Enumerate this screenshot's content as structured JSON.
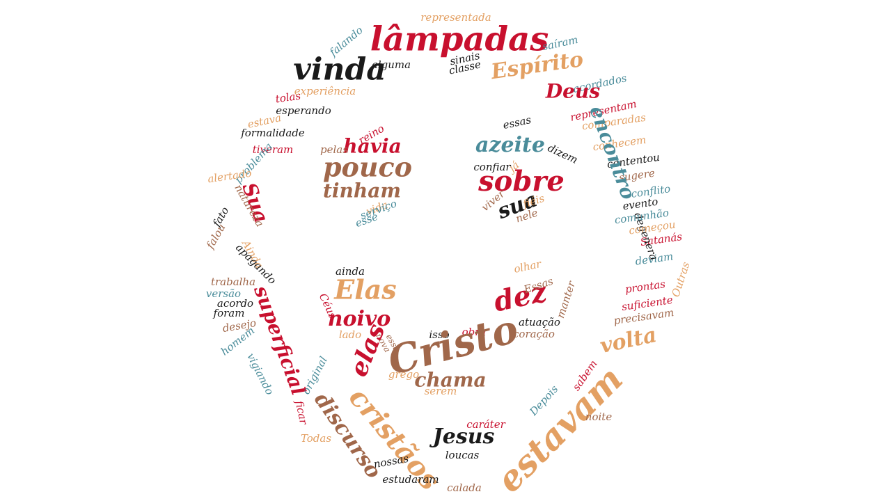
{
  "colors": {
    "red": "#c8102e",
    "black": "#1a1a1a",
    "brown": "#a0674a",
    "orange": "#e3a063",
    "teal": "#4a8c9a"
  },
  "words": [
    {
      "text": "lâmpadas",
      "color": "red",
      "weight": "bold"
    },
    {
      "text": "representada",
      "color": "orange"
    },
    {
      "text": "falando",
      "color": "teal"
    },
    {
      "text": "saíram",
      "color": "teal"
    },
    {
      "text": "vinda",
      "color": "black",
      "weight": "bold"
    },
    {
      "text": "alguma",
      "color": "black"
    },
    {
      "text": "sinais",
      "color": "black"
    },
    {
      "text": "classe",
      "color": "black"
    },
    {
      "text": "Espírito",
      "color": "orange",
      "weight": "bold"
    },
    {
      "text": "acordados",
      "color": "teal"
    },
    {
      "text": "Deus",
      "color": "red",
      "weight": "bold"
    },
    {
      "text": "representam",
      "color": "red"
    },
    {
      "text": "comparadas",
      "color": "orange"
    },
    {
      "text": "tolas",
      "color": "red"
    },
    {
      "text": "experiência",
      "color": "orange"
    },
    {
      "text": "esperando",
      "color": "black"
    },
    {
      "text": "estava",
      "color": "orange"
    },
    {
      "text": "formalidade",
      "color": "black"
    },
    {
      "text": "tiveram",
      "color": "red"
    },
    {
      "text": "problema",
      "color": "teal"
    },
    {
      "text": "alertado",
      "color": "orange"
    },
    {
      "text": "Sua",
      "color": "red",
      "weight": "bold"
    },
    {
      "text": "natureza",
      "color": "brown"
    },
    {
      "text": "fato",
      "color": "black"
    },
    {
      "text": "falou",
      "color": "brown"
    },
    {
      "text": "Ainda",
      "color": "orange"
    },
    {
      "text": "apagando",
      "color": "black"
    },
    {
      "text": "trabalha",
      "color": "brown"
    },
    {
      "text": "versão",
      "color": "teal"
    },
    {
      "text": "acordo",
      "color": "black"
    },
    {
      "text": "foram",
      "color": "black"
    },
    {
      "text": "superficial",
      "color": "red",
      "weight": "bold"
    },
    {
      "text": "desejo",
      "color": "brown"
    },
    {
      "text": "homem",
      "color": "teal"
    },
    {
      "text": "vigiando",
      "color": "teal"
    },
    {
      "text": "original",
      "color": "teal"
    },
    {
      "text": "ficar",
      "color": "red"
    },
    {
      "text": "discurso",
      "color": "brown",
      "weight": "bold"
    },
    {
      "text": "Todas",
      "color": "orange"
    },
    {
      "text": "cristãos",
      "color": "orange",
      "weight": "bold"
    },
    {
      "text": "nossas",
      "color": "black"
    },
    {
      "text": "estudaram",
      "color": "black"
    },
    {
      "text": "calada",
      "color": "brown"
    },
    {
      "text": "estavam",
      "color": "orange",
      "weight": "bold"
    },
    {
      "text": "Jesus",
      "color": "black",
      "weight": "bold"
    },
    {
      "text": "caráter",
      "color": "red"
    },
    {
      "text": "loucas",
      "color": "black"
    },
    {
      "text": "Depois",
      "color": "teal"
    },
    {
      "text": "sabem",
      "color": "red"
    },
    {
      "text": "noite",
      "color": "brown"
    },
    {
      "text": "volta",
      "color": "orange",
      "weight": "bold"
    },
    {
      "text": "precisavam",
      "color": "brown"
    },
    {
      "text": "suficiente",
      "color": "red"
    },
    {
      "text": "prontas",
      "color": "red"
    },
    {
      "text": "Outras",
      "color": "orange"
    },
    {
      "text": "deviam",
      "color": "teal"
    },
    {
      "text": "Satanás",
      "color": "red"
    },
    {
      "text": "degenera",
      "color": "black"
    },
    {
      "text": "começou",
      "color": "orange"
    },
    {
      "text": "comunhão",
      "color": "teal"
    },
    {
      "text": "evento",
      "color": "black"
    },
    {
      "text": "conflito",
      "color": "teal"
    },
    {
      "text": "sugere",
      "color": "brown"
    },
    {
      "text": "contentou",
      "color": "black"
    },
    {
      "text": "conhecem",
      "color": "orange"
    },
    {
      "text": "encontro",
      "color": "teal",
      "weight": "bold"
    },
    {
      "text": "reino",
      "color": "red"
    },
    {
      "text": "havia",
      "color": "red",
      "weight": "bold"
    },
    {
      "text": "pelas",
      "color": "brown"
    },
    {
      "text": "pouco",
      "color": "brown",
      "weight": "bold"
    },
    {
      "text": "tinham",
      "color": "brown",
      "weight": "bold"
    },
    {
      "text": "vida",
      "color": "orange"
    },
    {
      "text": "serviço",
      "color": "teal"
    },
    {
      "text": "esse",
      "color": "teal"
    },
    {
      "text": "essas",
      "color": "black"
    },
    {
      "text": "azeite",
      "color": "teal",
      "weight": "bold"
    },
    {
      "text": "dizem",
      "color": "black"
    },
    {
      "text": "já",
      "color": "orange"
    },
    {
      "text": "confiar",
      "color": "black"
    },
    {
      "text": "sobre",
      "color": "red",
      "weight": "bold"
    },
    {
      "text": "viver",
      "color": "brown"
    },
    {
      "text": "sua",
      "color": "black",
      "weight": "bold"
    },
    {
      "text": "fiéis",
      "color": "orange"
    },
    {
      "text": "nele",
      "color": "brown"
    },
    {
      "text": "ainda",
      "color": "black"
    },
    {
      "text": "Elas",
      "color": "orange",
      "weight": "bold"
    },
    {
      "text": "olhar",
      "color": "orange"
    },
    {
      "text": "dez",
      "color": "red",
      "weight": "bold"
    },
    {
      "text": "Essas",
      "color": "brown"
    },
    {
      "text": "manter",
      "color": "brown"
    },
    {
      "text": "Céus",
      "color": "red"
    },
    {
      "text": "noivo",
      "color": "red",
      "weight": "bold"
    },
    {
      "text": "isso",
      "color": "black"
    },
    {
      "text": "obra",
      "color": "red"
    },
    {
      "text": "atuação",
      "color": "black"
    },
    {
      "text": "coração",
      "color": "brown"
    },
    {
      "text": "nova",
      "color": "brown"
    },
    {
      "text": "essa",
      "color": "brown"
    },
    {
      "text": "lado",
      "color": "orange"
    },
    {
      "text": "elas",
      "color": "red",
      "weight": "bold"
    },
    {
      "text": "Cristo",
      "color": "brown",
      "weight": "bold"
    },
    {
      "text": "grego",
      "color": "orange"
    },
    {
      "text": "chama",
      "color": "brown",
      "weight": "bold"
    },
    {
      "text": "serem",
      "color": "orange"
    }
  ]
}
